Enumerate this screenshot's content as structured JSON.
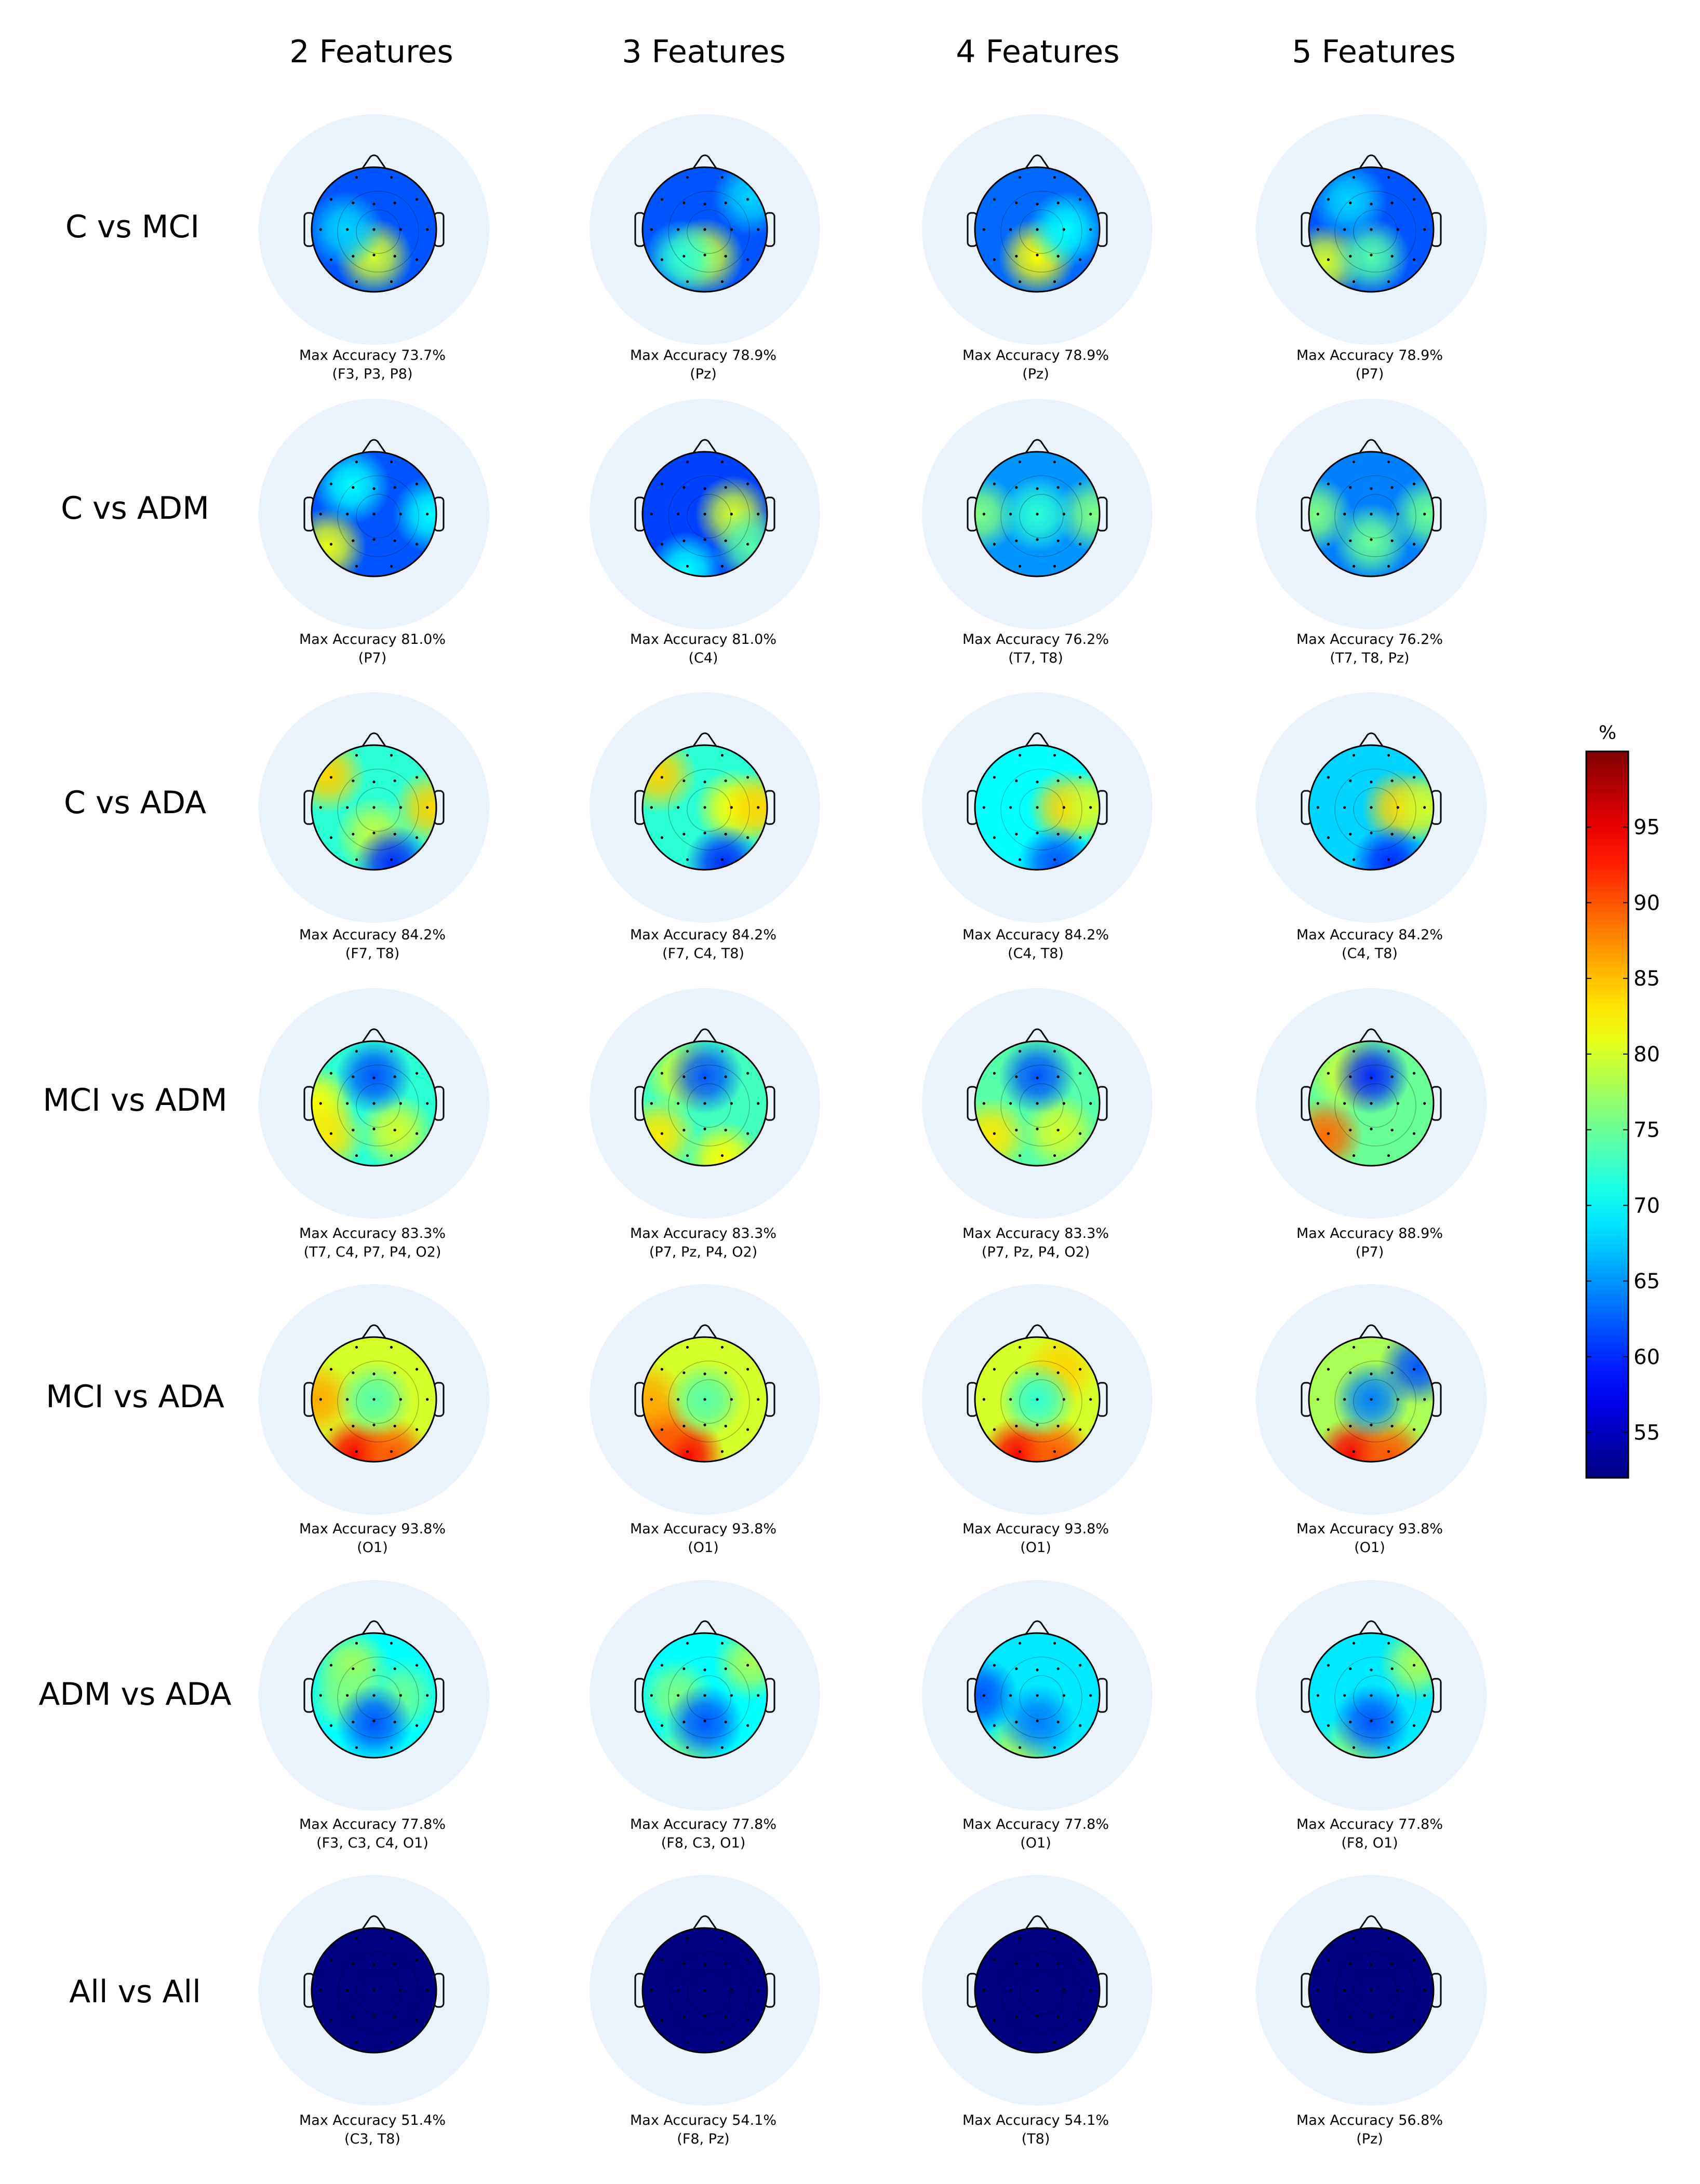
{
  "figure": {
    "column_headers": [
      "2 Features",
      "3 Features",
      "4 Features",
      "5 Features"
    ],
    "row_labels": [
      "C vs MCI",
      "C vs ADM",
      "C vs ADA",
      "MCI vs ADM",
      "MCI vs ADA",
      "ADM vs ADA",
      "All vs All"
    ],
    "accuracy_prefix": "Max Accuracy",
    "cells": [
      [
        {
          "accuracy": "73.7%",
          "channels": "(F3, P3, P8)",
          "base_level": 62,
          "spots": [
            [
              "Pz",
              80
            ],
            [
              "C3",
              68
            ]
          ]
        },
        {
          "accuracy": "78.9%",
          "channels": "(Pz)",
          "base_level": 62,
          "spots": [
            [
              "Pz",
              80
            ],
            [
              "P3",
              72
            ],
            [
              "F8",
              68
            ]
          ]
        },
        {
          "accuracy": "78.9%",
          "channels": "(Pz)",
          "base_level": 63,
          "spots": [
            [
              "Pz",
              82
            ],
            [
              "C4",
              70
            ]
          ]
        },
        {
          "accuracy": "78.9%",
          "channels": "(P7)",
          "base_level": 62,
          "spots": [
            [
              "P7",
              80
            ],
            [
              "Pz",
              74
            ],
            [
              "F3",
              68
            ]
          ]
        }
      ],
      [
        {
          "accuracy": "81.0%",
          "channels": "(P7)",
          "base_level": 62,
          "spots": [
            [
              "P7",
              81
            ],
            [
              "F3",
              70
            ],
            [
              "T8",
              70
            ]
          ]
        },
        {
          "accuracy": "81.0%",
          "channels": "(C4)",
          "base_level": 61,
          "spots": [
            [
              "C4",
              80
            ],
            [
              "P8",
              74
            ],
            [
              "O1",
              70
            ]
          ]
        },
        {
          "accuracy": "76.2%",
          "channels": "(T7, T8)",
          "base_level": 65,
          "spots": [
            [
              "T7",
              76
            ],
            [
              "T8",
              76
            ],
            [
              "Cz",
              72
            ]
          ]
        },
        {
          "accuracy": "76.2%",
          "channels": "(T7, T8, Pz)",
          "base_level": 64,
          "spots": [
            [
              "T7",
              76
            ],
            [
              "T8",
              75
            ],
            [
              "Pz",
              75
            ]
          ]
        }
      ],
      [
        {
          "accuracy": "84.2%",
          "channels": "(F7, T8)",
          "base_level": 72,
          "spots": [
            [
              "F7",
              84
            ],
            [
              "T8",
              84
            ],
            [
              "Pz",
              79
            ],
            [
              "O2",
              60
            ]
          ]
        },
        {
          "accuracy": "84.2%",
          "channels": "(F7, C4, T8)",
          "base_level": 72,
          "spots": [
            [
              "F7",
              84
            ],
            [
              "C4",
              82
            ],
            [
              "T8",
              84
            ],
            [
              "O2",
              60
            ]
          ]
        },
        {
          "accuracy": "84.2%",
          "channels": "(C4, T8)",
          "base_level": 70,
          "spots": [
            [
              "C4",
              84
            ],
            [
              "T8",
              80
            ],
            [
              "O2",
              62
            ]
          ]
        },
        {
          "accuracy": "84.2%",
          "channels": "(C4, T8)",
          "base_level": 68,
          "spots": [
            [
              "C4",
              84
            ],
            [
              "T8",
              80
            ],
            [
              "O2",
              60
            ]
          ]
        }
      ],
      [
        {
          "accuracy": "83.3%",
          "channels": "(T7, C4, P7, P4, O2)",
          "base_level": 72,
          "spots": [
            [
              "T7",
              82
            ],
            [
              "P7",
              83
            ],
            [
              "P4",
              80
            ],
            [
              "Fz",
              62
            ]
          ]
        },
        {
          "accuracy": "83.3%",
          "channels": "(P7, Pz, P4, O2)",
          "base_level": 73,
          "spots": [
            [
              "P7",
              83
            ],
            [
              "O2",
              82
            ],
            [
              "F3",
              80
            ],
            [
              "Fz",
              62
            ]
          ]
        },
        {
          "accuracy": "83.3%",
          "channels": "(P7, Pz, P4, O2)",
          "base_level": 74,
          "spots": [
            [
              "P7",
              83
            ],
            [
              "P4",
              80
            ],
            [
              "Fz",
              62
            ]
          ]
        },
        {
          "accuracy": "88.9%",
          "channels": "(P7)",
          "base_level": 75,
          "spots": [
            [
              "P7",
              89
            ],
            [
              "F3",
              80
            ],
            [
              "Fz",
              60
            ]
          ]
        }
      ],
      [
        {
          "accuracy": "93.8%",
          "channels": "(O1)",
          "base_level": 80,
          "spots": [
            [
              "O1",
              94
            ],
            [
              "O2",
              90
            ],
            [
              "T7",
              86
            ],
            [
              "Cz",
              74
            ]
          ]
        },
        {
          "accuracy": "93.8%",
          "channels": "(O1)",
          "base_level": 80,
          "spots": [
            [
              "O1",
              94
            ],
            [
              "P7",
              90
            ],
            [
              "T7",
              86
            ],
            [
              "Cz",
              74
            ]
          ]
        },
        {
          "accuracy": "93.8%",
          "channels": "(O1)",
          "base_level": 80,
          "spots": [
            [
              "O1",
              94
            ],
            [
              "O2",
              90
            ],
            [
              "F4",
              84
            ],
            [
              "Cz",
              72
            ]
          ]
        },
        {
          "accuracy": "93.8%",
          "channels": "(O1)",
          "base_level": 78,
          "spots": [
            [
              "O1",
              94
            ],
            [
              "O2",
              90
            ],
            [
              "Cz",
              64
            ],
            [
              "F8",
              62
            ]
          ]
        }
      ],
      [
        {
          "accuracy": "77.8%",
          "channels": "(F3, C3, C4, O1)",
          "base_level": 70,
          "spots": [
            [
              "F3",
              78
            ],
            [
              "C3",
              76
            ],
            [
              "C4",
              75
            ],
            [
              "Pz",
              62
            ]
          ]
        },
        {
          "accuracy": "77.8%",
          "channels": "(F8, C3, O1)",
          "base_level": 70,
          "spots": [
            [
              "F8",
              78
            ],
            [
              "C3",
              76
            ],
            [
              "O1",
              75
            ],
            [
              "Pz",
              62
            ]
          ]
        },
        {
          "accuracy": "77.8%",
          "channels": "(O1)",
          "base_level": 69,
          "spots": [
            [
              "O1",
              78
            ],
            [
              "T7",
              62
            ],
            [
              "Pz",
              64
            ]
          ]
        },
        {
          "accuracy": "77.8%",
          "channels": "(F8, O1)",
          "base_level": 69,
          "spots": [
            [
              "F8",
              78
            ],
            [
              "O1",
              76
            ],
            [
              "Pz",
              62
            ]
          ]
        }
      ],
      [
        {
          "accuracy": "51.4%",
          "channels": "(C3, T8)",
          "base_level": 51,
          "spots": []
        },
        {
          "accuracy": "54.1%",
          "channels": "(F8, Pz)",
          "base_level": 51,
          "spots": []
        },
        {
          "accuracy": "54.1%",
          "channels": "(T8)",
          "base_level": 51,
          "spots": []
        },
        {
          "accuracy": "56.8%",
          "channels": "(Pz)",
          "base_level": 51,
          "spots": []
        }
      ]
    ],
    "colorbar": {
      "unit": "%",
      "min": 52,
      "max": 100,
      "ticks": [
        55,
        60,
        65,
        70,
        75,
        80,
        85,
        90,
        95
      ]
    },
    "colors": {
      "halo": "#eaf2fc",
      "outline": "#000000"
    }
  }
}
